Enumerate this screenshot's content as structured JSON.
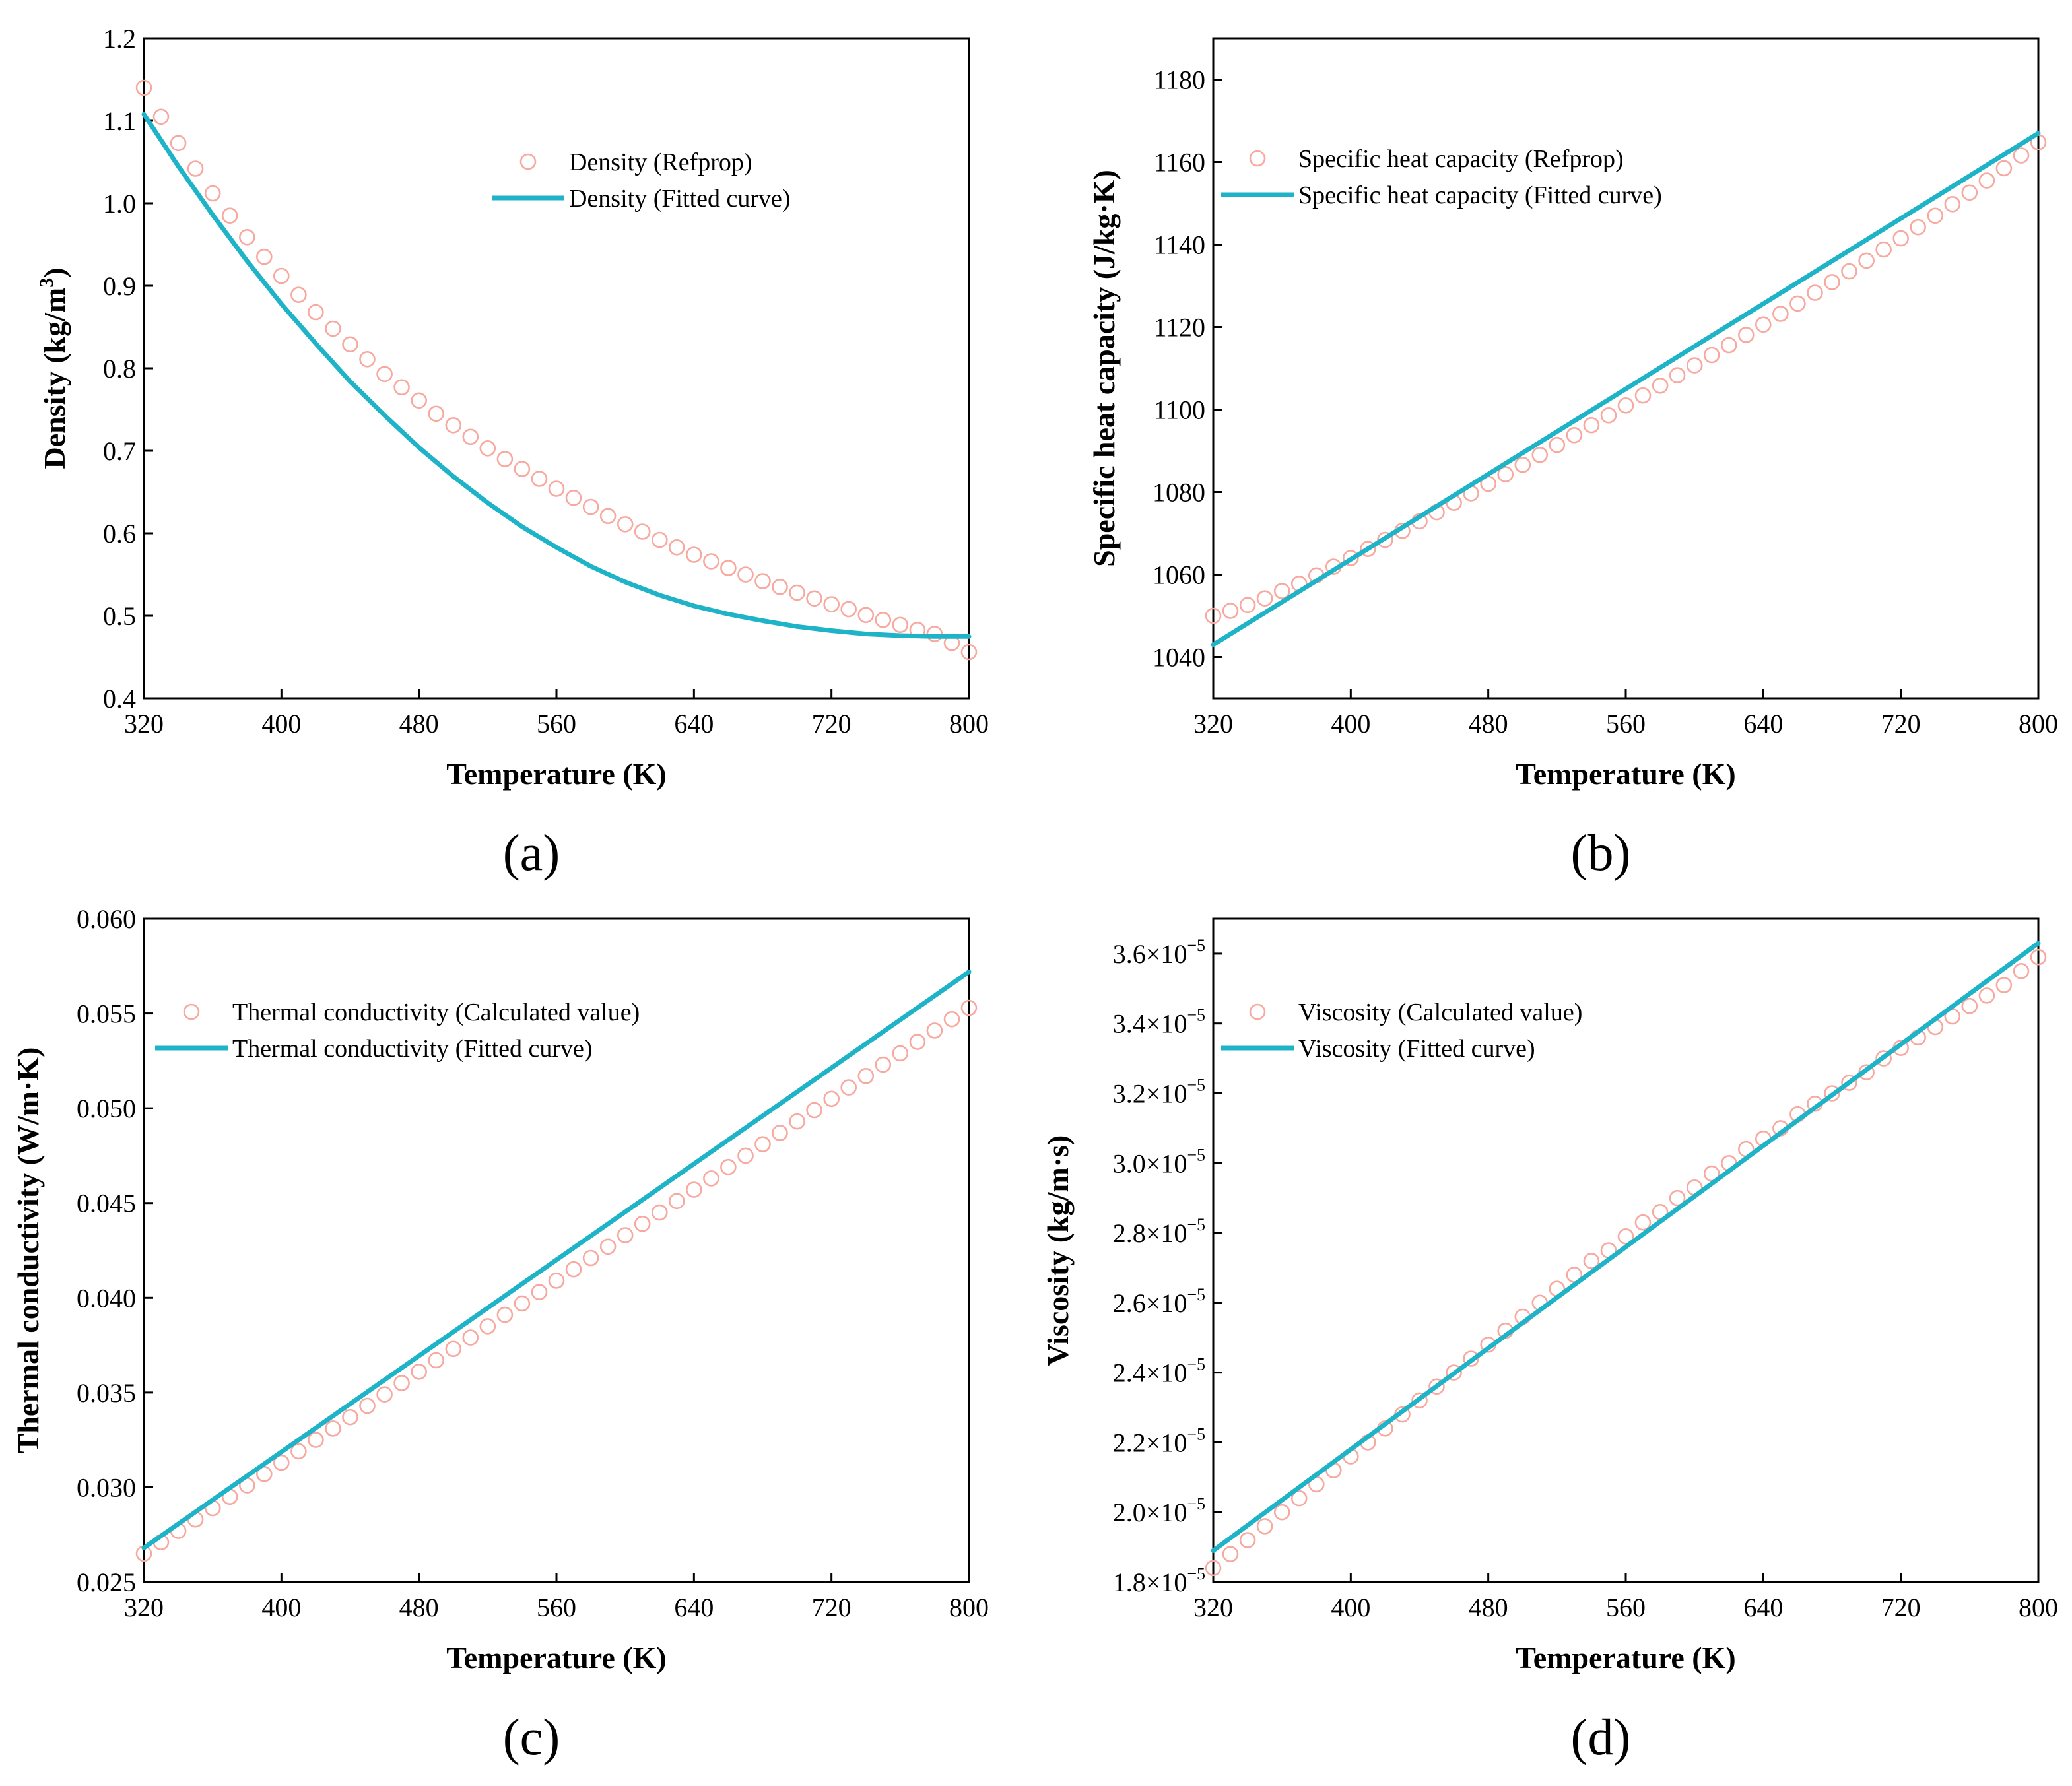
{
  "colors": {
    "fitted": "#1fb3c8",
    "measured": "#f7a9a0",
    "axis": "#000000"
  },
  "chart_data": [
    {
      "type": "line",
      "panel_label": "(a)",
      "xlabel": "Temperature (K)",
      "ylabel_parts": [
        "Density (kg/m",
        "3",
        ")"
      ],
      "xlim": [
        320,
        800
      ],
      "ylim": [
        0.4,
        1.2
      ],
      "xticks": [
        320,
        400,
        480,
        560,
        640,
        720,
        800
      ],
      "yticks": [
        0.4,
        0.5,
        0.6,
        0.7,
        0.8,
        0.9,
        1.0,
        1.1,
        1.2
      ],
      "ytick_labels": [
        "0.4",
        "0.5",
        "0.6",
        "0.7",
        "0.8",
        "0.9",
        "1.0",
        "1.1",
        "1.2"
      ],
      "legend_position": "upper-middle",
      "series": [
        {
          "name": "Density (Refprop)",
          "kind": "markers",
          "x": [
            320,
            330,
            340,
            350,
            360,
            370,
            380,
            390,
            400,
            410,
            420,
            430,
            440,
            450,
            460,
            470,
            480,
            490,
            500,
            510,
            520,
            530,
            540,
            550,
            560,
            570,
            580,
            590,
            600,
            610,
            620,
            630,
            640,
            650,
            660,
            670,
            680,
            690,
            700,
            710,
            720,
            730,
            740,
            750,
            760,
            770,
            780,
            790,
            800
          ],
          "values": [
            1.14,
            1.105,
            1.073,
            1.042,
            1.012,
            0.985,
            0.959,
            0.935,
            0.912,
            0.889,
            0.868,
            0.848,
            0.829,
            0.811,
            0.793,
            0.777,
            0.761,
            0.745,
            0.731,
            0.717,
            0.703,
            0.69,
            0.678,
            0.666,
            0.654,
            0.643,
            0.632,
            0.621,
            0.611,
            0.602,
            0.592,
            0.583,
            0.574,
            0.566,
            0.558,
            0.55,
            0.542,
            0.535,
            0.528,
            0.521,
            0.514,
            0.508,
            0.501,
            0.495,
            0.489,
            0.483,
            0.478,
            0.467,
            0.456
          ]
        },
        {
          "name": "Density (Fitted curve)",
          "kind": "line",
          "x": [
            320,
            340,
            360,
            380,
            400,
            420,
            440,
            460,
            480,
            500,
            520,
            540,
            560,
            580,
            600,
            620,
            640,
            660,
            680,
            700,
            720,
            740,
            760,
            780,
            800
          ],
          "values": [
            1.108,
            1.045,
            0.986,
            0.93,
            0.878,
            0.83,
            0.784,
            0.743,
            0.704,
            0.669,
            0.637,
            0.608,
            0.583,
            0.56,
            0.541,
            0.525,
            0.512,
            0.502,
            0.494,
            0.487,
            0.482,
            0.478,
            0.476,
            0.475,
            0.475
          ]
        }
      ]
    },
    {
      "type": "line",
      "panel_label": "(b)",
      "xlabel": "Temperature (K)",
      "ylabel_parts": [
        "Specific heat capacity (J/kg·K)"
      ],
      "xlim": [
        320,
        800
      ],
      "ylim": [
        1030,
        1190
      ],
      "xticks": [
        320,
        400,
        480,
        560,
        640,
        720,
        800
      ],
      "yticks": [
        1040,
        1060,
        1080,
        1100,
        1120,
        1140,
        1160,
        1180
      ],
      "ytick_labels": [
        "1040",
        "1060",
        "1080",
        "1100",
        "1120",
        "1140",
        "1160",
        "1180"
      ],
      "legend_position": "upper-left",
      "series": [
        {
          "name": "Specific heat capacity (Refprop)",
          "kind": "markers",
          "x": [
            320,
            330,
            340,
            350,
            360,
            370,
            380,
            390,
            400,
            410,
            420,
            430,
            440,
            450,
            460,
            470,
            480,
            490,
            500,
            510,
            520,
            530,
            540,
            550,
            560,
            570,
            580,
            590,
            600,
            610,
            620,
            630,
            640,
            650,
            660,
            670,
            680,
            690,
            700,
            710,
            720,
            730,
            740,
            750,
            760,
            770,
            780,
            790,
            800
          ],
          "values": [
            1050,
            1051.2,
            1052.6,
            1054.2,
            1056,
            1057.8,
            1059.8,
            1061.9,
            1064,
            1066.2,
            1068.4,
            1070.6,
            1072.9,
            1075.1,
            1077.4,
            1079.7,
            1082,
            1084.3,
            1086.6,
            1089,
            1091.4,
            1093.8,
            1096.2,
            1098.6,
            1101,
            1103.4,
            1105.8,
            1108.3,
            1110.7,
            1113.2,
            1115.6,
            1118.1,
            1120.6,
            1123.2,
            1125.7,
            1128.3,
            1130.9,
            1133.5,
            1136.1,
            1138.8,
            1141.5,
            1144.2,
            1147,
            1149.8,
            1152.6,
            1155.5,
            1158.5,
            1161.6,
            1164.8
          ]
        },
        {
          "name": "Specific heat capacity (Fitted curve)",
          "kind": "line",
          "x": [
            320,
            800
          ],
          "values": [
            1043,
            1167
          ]
        }
      ]
    },
    {
      "type": "line",
      "panel_label": "(c)",
      "xlabel": "Temperature (K)",
      "ylabel_parts": [
        "Thermal conductivity (W/m·K)"
      ],
      "xlim": [
        320,
        800
      ],
      "ylim": [
        0.025,
        0.06
      ],
      "xticks": [
        320,
        400,
        480,
        560,
        640,
        720,
        800
      ],
      "yticks": [
        0.025,
        0.03,
        0.035,
        0.04,
        0.045,
        0.05,
        0.055,
        0.06
      ],
      "ytick_labels": [
        "0.025",
        "0.030",
        "0.035",
        "0.040",
        "0.045",
        "0.050",
        "0.055",
        "0.060"
      ],
      "legend_position": "upper-left",
      "series": [
        {
          "name": "Thermal conductivity (Calculated value)",
          "kind": "markers",
          "x": [
            320,
            330,
            340,
            350,
            360,
            370,
            380,
            390,
            400,
            410,
            420,
            430,
            440,
            450,
            460,
            470,
            480,
            490,
            500,
            510,
            520,
            530,
            540,
            550,
            560,
            570,
            580,
            590,
            600,
            610,
            620,
            630,
            640,
            650,
            660,
            670,
            680,
            690,
            700,
            710,
            720,
            730,
            740,
            750,
            760,
            770,
            780,
            790,
            800
          ],
          "values": [
            0.0265,
            0.0271,
            0.0277,
            0.0283,
            0.0289,
            0.0295,
            0.0301,
            0.0307,
            0.0313,
            0.0319,
            0.0325,
            0.0331,
            0.0337,
            0.0343,
            0.0349,
            0.0355,
            0.0361,
            0.0367,
            0.0373,
            0.0379,
            0.0385,
            0.0391,
            0.0397,
            0.0403,
            0.0409,
            0.0415,
            0.0421,
            0.0427,
            0.0433,
            0.0439,
            0.0445,
            0.0451,
            0.0457,
            0.0463,
            0.0469,
            0.0475,
            0.0481,
            0.0487,
            0.0493,
            0.0499,
            0.0505,
            0.0511,
            0.0517,
            0.0523,
            0.0529,
            0.0535,
            0.0541,
            0.0547,
            0.0553
          ]
        },
        {
          "name": "Thermal conductivity (Fitted curve)",
          "kind": "line",
          "x": [
            320,
            800
          ],
          "values": [
            0.0268,
            0.0572
          ]
        }
      ]
    },
    {
      "type": "line",
      "panel_label": "(d)",
      "xlabel": "Temperature (K)",
      "ylabel_parts": [
        "Viscosity (kg/m·s)"
      ],
      "xlim": [
        320,
        800
      ],
      "ylim": [
        1.8e-05,
        3.7e-05
      ],
      "xticks": [
        320,
        400,
        480,
        560,
        640,
        720,
        800
      ],
      "yticks": [
        1.8e-05,
        2e-05,
        2.2e-05,
        2.4e-05,
        2.6e-05,
        2.8e-05,
        3e-05,
        3.2e-05,
        3.4e-05,
        3.6e-05
      ],
      "ytick_labels": [
        "1.8×10",
        "2.0×10",
        "2.2×10",
        "2.4×10",
        "2.6×10",
        "2.8×10",
        "3.0×10",
        "3.2×10",
        "3.4×10",
        "3.6×10"
      ],
      "ytick_exponent": "−5",
      "legend_position": "upper-left",
      "series": [
        {
          "name": "Viscosity (Calculated value)",
          "kind": "markers",
          "x": [
            320,
            330,
            340,
            350,
            360,
            370,
            380,
            390,
            400,
            410,
            420,
            430,
            440,
            450,
            460,
            470,
            480,
            490,
            500,
            510,
            520,
            530,
            540,
            550,
            560,
            570,
            580,
            590,
            600,
            610,
            620,
            630,
            640,
            650,
            660,
            670,
            680,
            690,
            700,
            710,
            720,
            730,
            740,
            750,
            760,
            770,
            780,
            790,
            800
          ],
          "values": [
            1.84e-05,
            1.88e-05,
            1.92e-05,
            1.96e-05,
            2e-05,
            2.04e-05,
            2.08e-05,
            2.12e-05,
            2.16e-05,
            2.2e-05,
            2.24e-05,
            2.28e-05,
            2.32e-05,
            2.36e-05,
            2.4e-05,
            2.44e-05,
            2.48e-05,
            2.52e-05,
            2.56e-05,
            2.6e-05,
            2.64e-05,
            2.68e-05,
            2.72e-05,
            2.75e-05,
            2.79e-05,
            2.83e-05,
            2.86e-05,
            2.9e-05,
            2.93e-05,
            2.97e-05,
            3e-05,
            3.04e-05,
            3.07e-05,
            3.1e-05,
            3.14e-05,
            3.17e-05,
            3.2e-05,
            3.23e-05,
            3.26e-05,
            3.3e-05,
            3.33e-05,
            3.36e-05,
            3.39e-05,
            3.42e-05,
            3.45e-05,
            3.48e-05,
            3.51e-05,
            3.55e-05,
            3.59e-05
          ]
        },
        {
          "name": "Viscosity (Fitted curve)",
          "kind": "line",
          "x": [
            320,
            800
          ],
          "values": [
            1.89e-05,
            3.63e-05
          ]
        }
      ]
    }
  ]
}
